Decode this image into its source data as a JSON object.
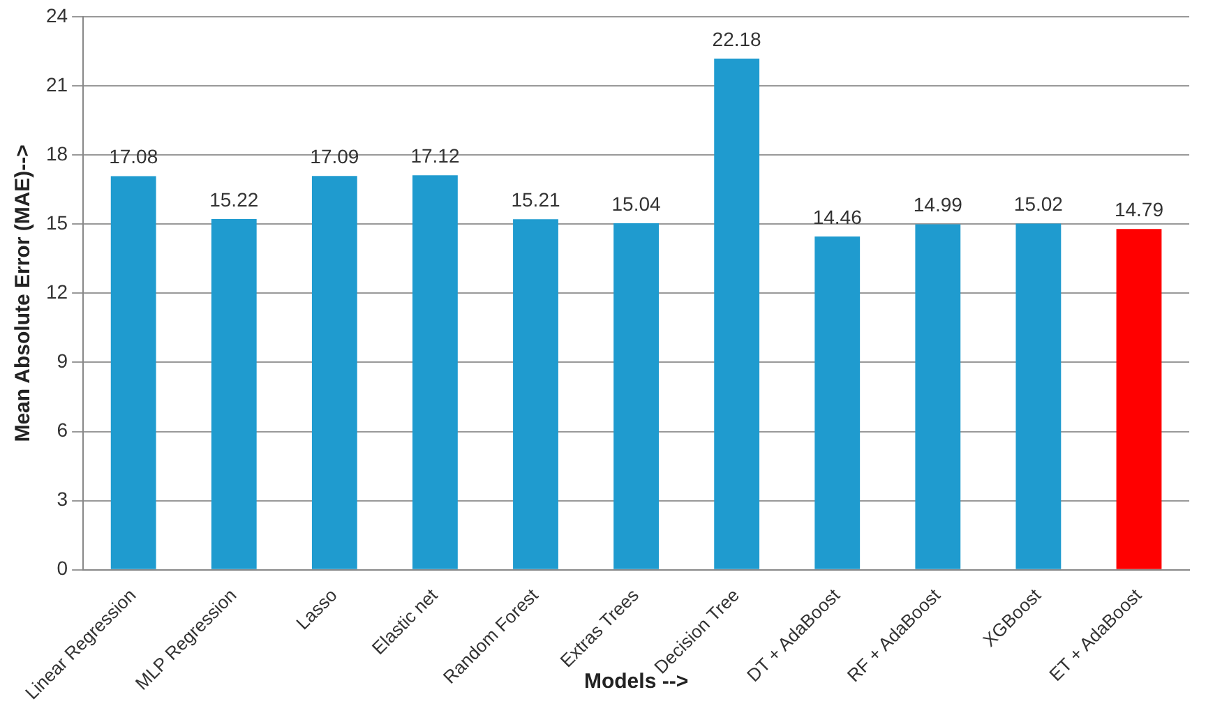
{
  "chart_data": {
    "type": "bar",
    "xlabel": "Models -->",
    "ylabel": "Mean Absolute Error (MAE)-->",
    "categories": [
      "Linear Regression",
      "MLP Regression",
      "Lasso",
      "Elastic net",
      "Random Forest",
      "Extras Trees",
      "Decision Tree",
      "DT + AdaBoost",
      "RF + AdaBoost",
      "XGBoost",
      "ET + AdaBoost"
    ],
    "values": [
      17.08,
      15.22,
      17.09,
      17.12,
      15.21,
      15.04,
      22.18,
      14.46,
      14.99,
      15.02,
      14.79
    ],
    "colors": [
      "#1f9bcf",
      "#1f9bcf",
      "#1f9bcf",
      "#1f9bcf",
      "#1f9bcf",
      "#1f9bcf",
      "#1f9bcf",
      "#1f9bcf",
      "#1f9bcf",
      "#1f9bcf",
      "#ff0000"
    ],
    "ylim": [
      0,
      24
    ],
    "yticks": [
      0,
      3,
      6,
      9,
      12,
      15,
      18,
      21,
      24
    ],
    "grid": "y",
    "data_labels": true
  }
}
